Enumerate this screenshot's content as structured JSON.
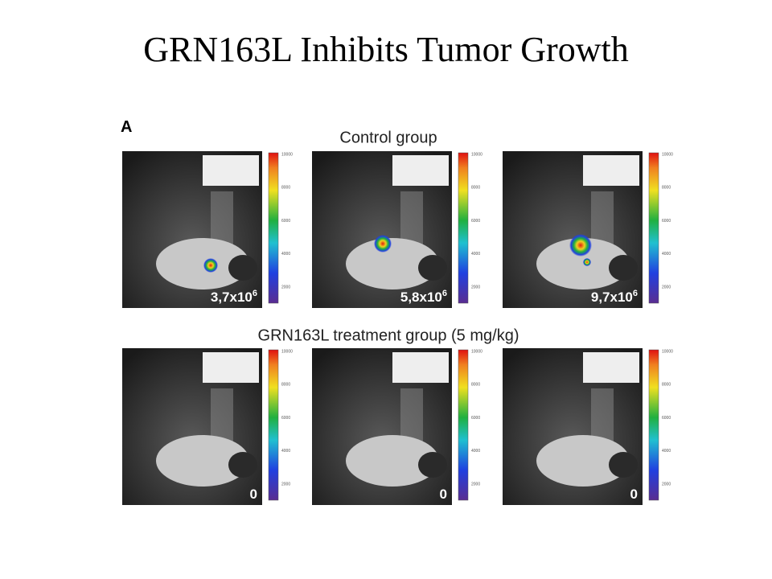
{
  "title": "GRN163L Inhibits Tumor Growth",
  "figure": {
    "panel_label": "A",
    "colorbar_ticks": [
      "10000",
      "8000",
      "6000",
      "4000",
      "2000"
    ],
    "groups": [
      {
        "label": "Control group",
        "panels": [
          {
            "signal": {
              "base": "3,7x10",
              "exp": "6"
            }
          },
          {
            "signal": {
              "base": "5,8x10",
              "exp": "6"
            }
          },
          {
            "signal": {
              "base": "9,7x10",
              "exp": "6"
            }
          }
        ]
      },
      {
        "label": "GRN163L treatment group (5 mg/kg)",
        "panels": [
          {
            "signal": {
              "base": "0"
            }
          },
          {
            "signal": {
              "base": "0"
            }
          },
          {
            "signal": {
              "base": "0"
            }
          }
        ]
      }
    ]
  }
}
